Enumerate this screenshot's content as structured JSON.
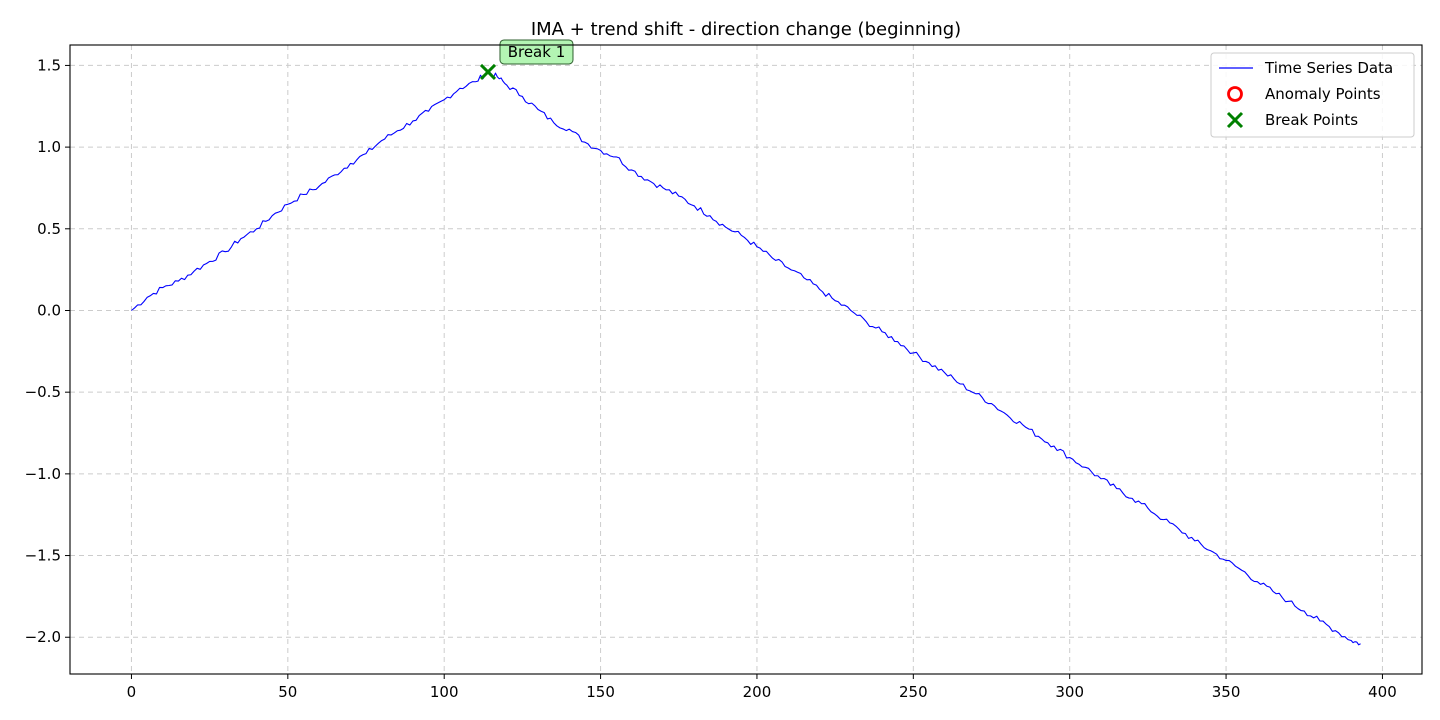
{
  "chart_data": {
    "type": "line",
    "title": "IMA + trend shift - direction change (beginning)",
    "xlabel": "",
    "ylabel": "",
    "xlim": [
      -19.65,
      412.65
    ],
    "ylim": [
      -2.225,
      1.625
    ],
    "xticks": [
      0,
      50,
      100,
      150,
      200,
      250,
      300,
      350,
      400
    ],
    "xtick_labels": [
      "0",
      "50",
      "100",
      "150",
      "200",
      "250",
      "300",
      "350",
      "400"
    ],
    "yticks": [
      1.5,
      1.0,
      0.5,
      0.0,
      -0.5,
      -1.0,
      -1.5,
      -2.0
    ],
    "ytick_labels": [
      "1.5",
      "1.0",
      "0.5",
      "0.0",
      "−0.5",
      "−1.0",
      "−1.5",
      "−2.0"
    ],
    "grid": true,
    "legend_position": "top-right",
    "series": [
      {
        "name": "Time Series Data",
        "color": "#0000ff",
        "points": [
          [
            0,
            0.0
          ],
          [
            5,
            0.08
          ],
          [
            10,
            0.14
          ],
          [
            15,
            0.18
          ],
          [
            20,
            0.24
          ],
          [
            25,
            0.3
          ],
          [
            30,
            0.36
          ],
          [
            35,
            0.44
          ],
          [
            40,
            0.5
          ],
          [
            45,
            0.58
          ],
          [
            50,
            0.65
          ],
          [
            55,
            0.71
          ],
          [
            60,
            0.76
          ],
          [
            65,
            0.83
          ],
          [
            70,
            0.9
          ],
          [
            75,
            0.96
          ],
          [
            80,
            1.04
          ],
          [
            85,
            1.1
          ],
          [
            90,
            1.16
          ],
          [
            95,
            1.22
          ],
          [
            100,
            1.29
          ],
          [
            105,
            1.36
          ],
          [
            110,
            1.4
          ],
          [
            114,
            1.46
          ],
          [
            117,
            1.43
          ],
          [
            120,
            1.38
          ],
          [
            125,
            1.31
          ],
          [
            130,
            1.23
          ],
          [
            135,
            1.15
          ],
          [
            140,
            1.11
          ],
          [
            145,
            1.03
          ],
          [
            150,
            0.98
          ],
          [
            155,
            0.94
          ],
          [
            160,
            0.86
          ],
          [
            165,
            0.8
          ],
          [
            170,
            0.75
          ],
          [
            175,
            0.7
          ],
          [
            180,
            0.64
          ],
          [
            185,
            0.58
          ],
          [
            190,
            0.51
          ],
          [
            195,
            0.46
          ],
          [
            200,
            0.39
          ],
          [
            205,
            0.32
          ],
          [
            210,
            0.26
          ],
          [
            215,
            0.2
          ],
          [
            220,
            0.13
          ],
          [
            225,
            0.06
          ],
          [
            230,
            0.0
          ],
          [
            235,
            -0.07
          ],
          [
            240,
            -0.13
          ],
          [
            245,
            -0.19
          ],
          [
            250,
            -0.26
          ],
          [
            255,
            -0.32
          ],
          [
            260,
            -0.38
          ],
          [
            265,
            -0.45
          ],
          [
            270,
            -0.51
          ],
          [
            275,
            -0.57
          ],
          [
            280,
            -0.64
          ],
          [
            285,
            -0.7
          ],
          [
            290,
            -0.77
          ],
          [
            295,
            -0.83
          ],
          [
            300,
            -0.9
          ],
          [
            305,
            -0.96
          ],
          [
            310,
            -1.03
          ],
          [
            315,
            -1.09
          ],
          [
            320,
            -1.15
          ],
          [
            325,
            -1.21
          ],
          [
            330,
            -1.28
          ],
          [
            335,
            -1.34
          ],
          [
            340,
            -1.41
          ],
          [
            345,
            -1.47
          ],
          [
            350,
            -1.53
          ],
          [
            355,
            -1.59
          ],
          [
            360,
            -1.66
          ],
          [
            365,
            -1.72
          ],
          [
            370,
            -1.78
          ],
          [
            375,
            -1.84
          ],
          [
            380,
            -1.9
          ],
          [
            385,
            -1.96
          ],
          [
            390,
            -2.02
          ],
          [
            393,
            -2.04
          ]
        ]
      }
    ],
    "anomaly_points": [],
    "break_points": [
      {
        "x": 114,
        "y": 1.46,
        "label": "Break 1"
      }
    ],
    "legend": [
      {
        "label": "Time Series Data",
        "marker": "line",
        "color": "#0000ff"
      },
      {
        "label": "Anomaly Points",
        "marker": "circle",
        "color": "#ff0000"
      },
      {
        "label": "Break Points",
        "marker": "x",
        "color": "#008000"
      }
    ],
    "colors": {
      "line": "#0000ff",
      "anomaly": "#ff0000",
      "break": "#008000",
      "annotation_bg": "#b3f5b3",
      "grid": "#cccccc"
    }
  }
}
